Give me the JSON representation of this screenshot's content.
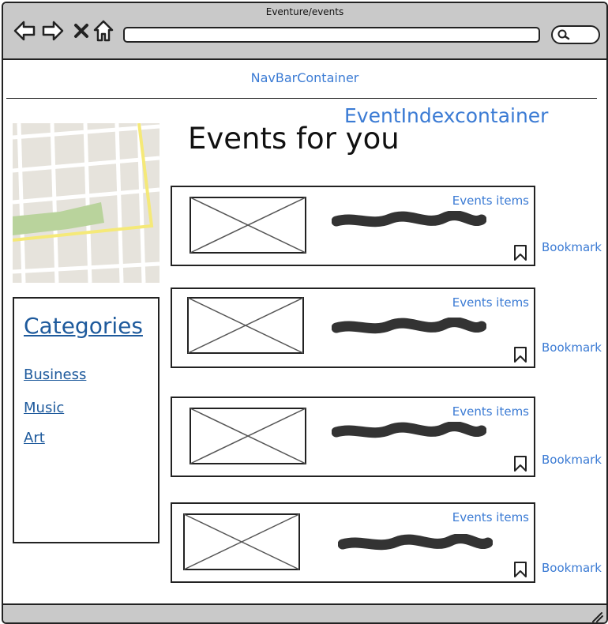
{
  "window": {
    "title": "Eventure/events"
  },
  "navbar": {
    "label": "NavBarContainer"
  },
  "event_index": {
    "label": "EventIndexcontainer",
    "heading": "Events for you",
    "items": [
      {
        "label": "Events items",
        "bookmark": "Bookmark"
      },
      {
        "label": "Events items",
        "bookmark": "Bookmark"
      },
      {
        "label": "Events items",
        "bookmark": "Bookmark"
      },
      {
        "label": "Events items",
        "bookmark": "Bookmark"
      }
    ]
  },
  "categories": {
    "title": "Categories",
    "links": [
      "Business",
      "Music",
      "Art"
    ]
  },
  "icons": {
    "back": "arrow-left-icon",
    "forward": "arrow-right-icon",
    "stop": "close-icon",
    "home": "home-icon",
    "search": "search-icon",
    "bookmark": "bookmark-icon",
    "resize": "resize-grip-icon"
  },
  "colors": {
    "link": "#3b7bd4",
    "category_link": "#1e5a9c",
    "chrome": "#c9c9c9"
  }
}
